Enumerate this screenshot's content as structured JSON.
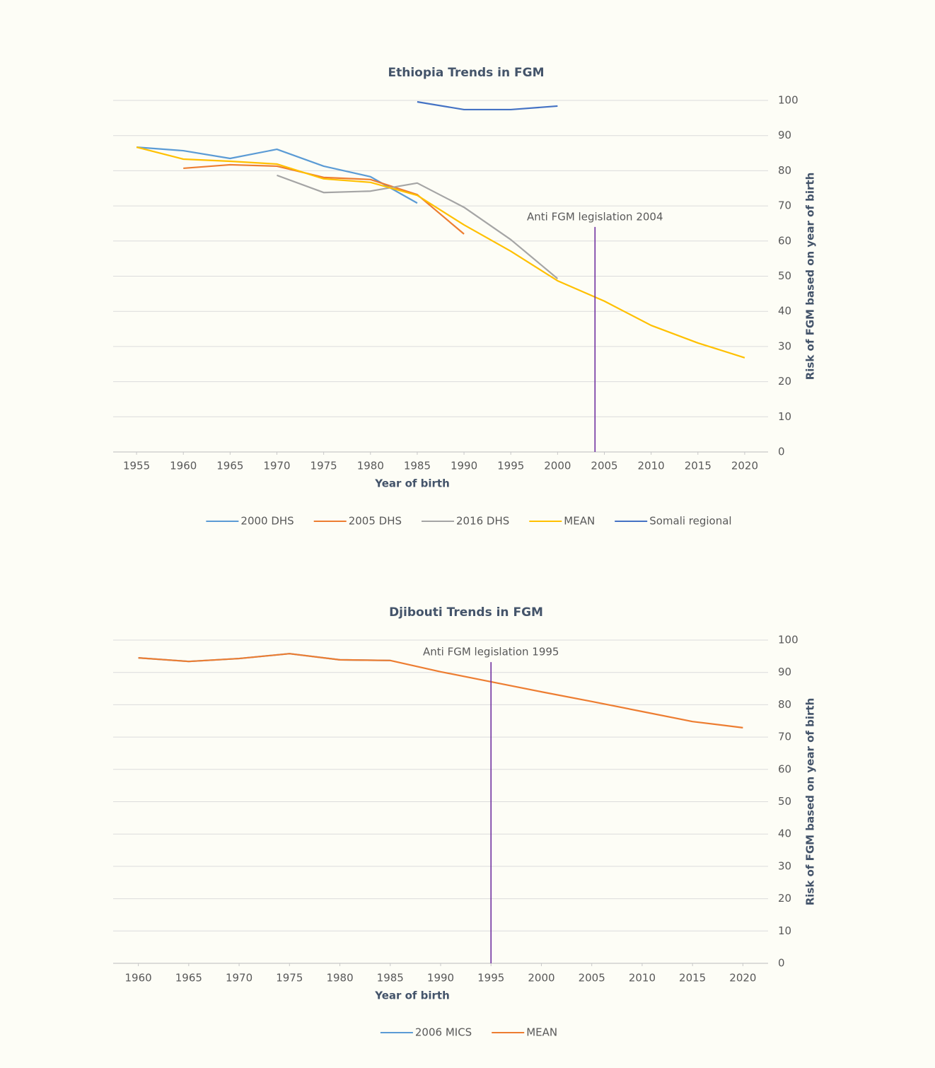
{
  "chart_data": [
    {
      "type": "line",
      "title": "Ethiopia Trends in FGM",
      "x_label": "Year of birth",
      "y_label": "Risk of FGM based on year of birth",
      "x": [
        1955,
        1960,
        1965,
        1970,
        1975,
        1980,
        1985,
        1990,
        1995,
        2000,
        2005,
        2010,
        2015,
        2020
      ],
      "xticks": [
        1955,
        1960,
        1965,
        1970,
        1975,
        1980,
        1985,
        1990,
        1995,
        2000,
        2005,
        2010,
        2015,
        2020
      ],
      "xlim": [
        1952.5,
        2022.5
      ],
      "ylim": [
        0,
        100
      ],
      "yticks": [
        0,
        10,
        20,
        30,
        40,
        50,
        60,
        70,
        80,
        90,
        100
      ],
      "grid": true,
      "y_axis_side": "right",
      "legend": "bottom",
      "series": [
        {
          "name": "2000 DHS",
          "color": "#5b9bd5",
          "values": [
            86.7,
            85.7,
            83.5,
            86.1,
            81.3,
            78.3,
            70.8,
            null,
            null,
            null,
            null,
            null,
            null,
            null
          ]
        },
        {
          "name": "2005 DHS",
          "color": "#ed7d31",
          "values": [
            null,
            80.7,
            81.7,
            81.3,
            78.1,
            77.5,
            73.2,
            62.0,
            null,
            null,
            null,
            null,
            null,
            null
          ]
        },
        {
          "name": "2016 DHS",
          "color": "#a5a5a5",
          "values": [
            null,
            null,
            null,
            78.7,
            73.8,
            74.2,
            76.5,
            69.6,
            60.4,
            49.3,
            null,
            null,
            null,
            null
          ]
        },
        {
          "name": "MEAN",
          "color": "#ffc000",
          "values": [
            86.7,
            83.3,
            82.7,
            81.9,
            77.7,
            76.7,
            73.0,
            64.6,
            57.1,
            48.7,
            42.9,
            36.0,
            31.0,
            26.8
          ]
        },
        {
          "name": "Somali regional",
          "color": "#4472c4",
          "values": [
            null,
            null,
            null,
            null,
            null,
            null,
            99.6,
            97.4,
            97.4,
            98.4,
            null,
            null,
            null,
            null
          ]
        }
      ],
      "annotation": {
        "text": "Anti FGM legislation 2004",
        "x": 2004,
        "y": 64,
        "color": "#7030a0"
      }
    },
    {
      "type": "line",
      "title": "Djibouti Trends in FGM",
      "x_label": "Year of birth",
      "y_label": "Risk of FGM based on year of birth",
      "x": [
        1960,
        1965,
        1970,
        1975,
        1980,
        1985,
        1990,
        1995,
        2000,
        2005,
        2010,
        2015,
        2020
      ],
      "xticks": [
        1960,
        1965,
        1970,
        1975,
        1980,
        1985,
        1990,
        1995,
        2000,
        2005,
        2010,
        2015,
        2020
      ],
      "xlim": [
        1957.5,
        2022.5
      ],
      "ylim": [
        0,
        100
      ],
      "yticks": [
        0,
        10,
        20,
        30,
        40,
        50,
        60,
        70,
        80,
        90,
        100
      ],
      "grid": true,
      "y_axis_side": "right",
      "legend": "bottom",
      "series": [
        {
          "name": "2006 MICS",
          "color": "#5b9bd5",
          "values": [
            94.5,
            93.4,
            94.3,
            95.8,
            93.9,
            93.7,
            null,
            null,
            null,
            null,
            null,
            null,
            null
          ]
        },
        {
          "name": "MEAN",
          "color": "#ed7d31",
          "values": [
            94.5,
            93.4,
            94.3,
            95.8,
            93.9,
            93.7,
            90.2,
            87.1,
            84.0,
            81.0,
            77.9,
            74.8,
            72.9
          ]
        }
      ],
      "annotation": {
        "text": "Anti FGM legislation 1995",
        "x": 1995,
        "y": 93.2,
        "color": "#7030a0"
      }
    }
  ]
}
